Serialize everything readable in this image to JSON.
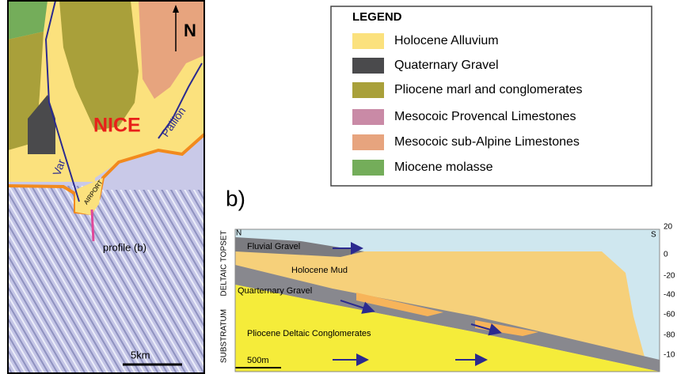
{
  "map": {
    "north": "N",
    "city": "NICE",
    "river_var": "Var",
    "river_paillon": "Paillon",
    "airport": "AIRPORT",
    "profile": "profile (b)",
    "scale": "5km"
  },
  "legend": {
    "title": "LEGEND",
    "items": [
      {
        "label": "Holocene Alluvium",
        "color": "#fbe17d"
      },
      {
        "label": "Quaternary Gravel",
        "color": "#4a4a4c"
      },
      {
        "label": "Pliocene marl and conglomerates",
        "color": "#a9a03a"
      },
      {
        "label": "Mesocoic Provencal Limestones",
        "color": "#c98aa6"
      },
      {
        "label": "Mesocoic sub-Alpine Limestones",
        "color": "#e7a47e"
      },
      {
        "label": "Miocene molasse",
        "color": "#74ad5a"
      }
    ]
  },
  "section": {
    "panel": "b)",
    "north": "N",
    "south": "S",
    "depth_labels": [
      "20",
      "0",
      "-20",
      "-40",
      "-60",
      "-80",
      "-10"
    ],
    "side_labels": [
      "DELTAIC TOPSET",
      "SUBSTRATUM"
    ],
    "layers": [
      "Fluvial Gravel",
      "Holocene Mud",
      "Quarternary Gravel",
      "Pliocene Deltaic Conglomerates"
    ],
    "scale": "500m"
  }
}
